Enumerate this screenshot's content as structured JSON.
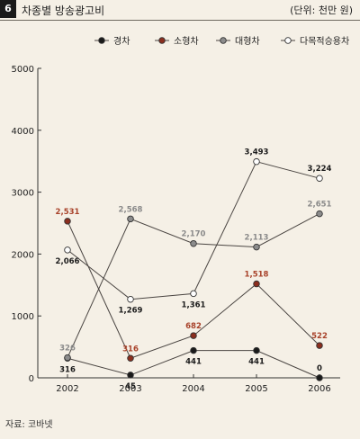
{
  "header": {
    "number": "6",
    "title": "차종별 방송광고비",
    "unit": "(단위: 천만 원)"
  },
  "source": "자료: 코바넷",
  "colors": {
    "경차": "#1a1a1a",
    "소형차": "#8b2e1e",
    "대형차": "#8c8c8c",
    "다목적승용차": "#ffffff",
    "label_black": "#1a1a1a",
    "label_red": "#a8422a",
    "label_gray": "#8a8a8a"
  },
  "chart_data": {
    "type": "line",
    "categories": [
      "2002",
      "2003",
      "2004",
      "2005",
      "2006"
    ],
    "yticks": [
      "0",
      "1000",
      "2000",
      "3000",
      "4000",
      "5000"
    ],
    "ylim": [
      0,
      5000
    ],
    "grid": false,
    "legend_position": "top",
    "series": [
      {
        "name": "경차",
        "values": [
          316,
          45,
          441,
          441,
          0
        ],
        "labels": [
          "316",
          "45",
          "441",
          "441",
          "0"
        ]
      },
      {
        "name": "소형차",
        "values": [
          2531,
          316,
          682,
          1518,
          522
        ],
        "labels": [
          "2,531",
          "316",
          "682",
          "1,518",
          "522"
        ]
      },
      {
        "name": "대형차",
        "values": [
          326,
          2568,
          2170,
          2113,
          2651
        ],
        "labels": [
          "326",
          "2,568",
          "2,170",
          "2,113",
          "2,651"
        ]
      },
      {
        "name": "다목적승용차",
        "values": [
          2066,
          1269,
          1361,
          3493,
          3224
        ],
        "labels": [
          "2,066",
          "1,269",
          "1,361",
          "3,493",
          "3,224"
        ]
      }
    ]
  }
}
